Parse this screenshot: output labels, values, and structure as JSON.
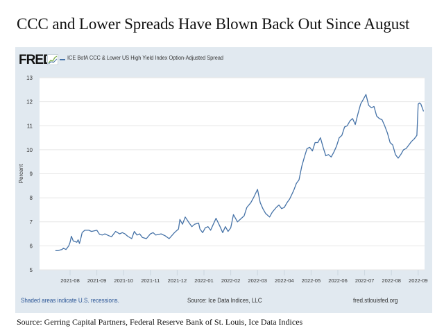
{
  "headline": "CCC and Lower Spreads Have Blown Back Out Since August",
  "fred": {
    "logo_text": "FRED",
    "logo_icon": "chart-line-icon",
    "footer_left": "Shaded areas indicate U.S. recessions.",
    "footer_mid": "Source: Ice Data Indices, LLC",
    "footer_right": "fred.stlouisfed.org"
  },
  "caption": "Source: Gerring Capital Partners, Federal Reserve Bank of St. Louis, Ice Data Indices",
  "chart_data": {
    "type": "line",
    "title": "ICE BofA CCC & Lower US High Yield Index Option-Adjusted Spread",
    "xlabel": "",
    "ylabel": "Percent",
    "ylim": [
      5,
      13
    ],
    "yticks": [
      5,
      6,
      7,
      8,
      9,
      10,
      11,
      12,
      13
    ],
    "xticks": [
      "2021-08",
      "2021-09",
      "2021-10",
      "2021-11",
      "2021-12",
      "2022-01",
      "2022-02",
      "2022-03",
      "2022-04",
      "2022-05",
      "2022-06",
      "2022-07",
      "2022-08",
      "2022-09"
    ],
    "grid": true,
    "legend": "top-left",
    "line_color": "#4572a7",
    "series": [
      {
        "name": "ICE BofA CCC & Lower US High Yield Index Option-Adjusted Spread",
        "x_months": [
          -0.55,
          -0.45,
          -0.4,
          -0.3,
          -0.25,
          -0.15,
          -0.05,
          0.0,
          0.05,
          0.12,
          0.18,
          0.25,
          0.3,
          0.35,
          0.4,
          0.45,
          0.55,
          0.7,
          0.8,
          1.0,
          1.1,
          1.2,
          1.3,
          1.45,
          1.55,
          1.7,
          1.85,
          1.95,
          2.05,
          2.15,
          2.3,
          2.4,
          2.5,
          2.6,
          2.7,
          2.85,
          3.0,
          3.1,
          3.2,
          3.4,
          3.55,
          3.7,
          3.9,
          4.05,
          4.1,
          4.2,
          4.3,
          4.45,
          4.55,
          4.65,
          4.8,
          4.85,
          4.95,
          5.05,
          5.15,
          5.25,
          5.35,
          5.45,
          5.6,
          5.7,
          5.8,
          5.9,
          6.0,
          6.1,
          6.25,
          6.4,
          6.5,
          6.6,
          6.75,
          6.85,
          7.0,
          7.1,
          7.2,
          7.3,
          7.45,
          7.55,
          7.7,
          7.8,
          7.9,
          8.0,
          8.1,
          8.2,
          8.35,
          8.45,
          8.55,
          8.65,
          8.75,
          8.85,
          8.95,
          9.05,
          9.15,
          9.25,
          9.35,
          9.45,
          9.55,
          9.65,
          9.75,
          9.85,
          9.95,
          10.05,
          10.15,
          10.25,
          10.35,
          10.45,
          10.55,
          10.65,
          10.75,
          10.85,
          10.95,
          11.05,
          11.15,
          11.25,
          11.35,
          11.45,
          11.55,
          11.65,
          11.75,
          11.85,
          11.95,
          12.05,
          12.15,
          12.25,
          12.35,
          12.45,
          12.55,
          12.65,
          12.75,
          12.85,
          12.95,
          13.0,
          13.05,
          13.1,
          13.15,
          13.2
        ],
        "values": [
          5.8,
          5.8,
          5.82,
          5.85,
          5.9,
          5.85,
          6.0,
          6.15,
          6.4,
          6.2,
          6.18,
          6.15,
          6.25,
          6.1,
          6.3,
          6.55,
          6.65,
          6.65,
          6.6,
          6.65,
          6.48,
          6.45,
          6.5,
          6.42,
          6.38,
          6.6,
          6.5,
          6.55,
          6.5,
          6.4,
          6.3,
          6.6,
          6.45,
          6.5,
          6.35,
          6.3,
          6.5,
          6.55,
          6.45,
          6.5,
          6.42,
          6.3,
          6.55,
          6.7,
          7.1,
          6.9,
          7.2,
          6.95,
          6.8,
          6.9,
          6.95,
          6.7,
          6.55,
          6.75,
          6.8,
          6.65,
          6.9,
          7.15,
          6.8,
          6.55,
          6.8,
          6.6,
          6.75,
          7.3,
          7.0,
          7.15,
          7.25,
          7.6,
          7.8,
          8.0,
          8.35,
          7.8,
          7.55,
          7.35,
          7.2,
          7.4,
          7.6,
          7.7,
          7.55,
          7.6,
          7.8,
          7.95,
          8.3,
          8.6,
          8.75,
          9.3,
          9.7,
          10.05,
          10.1,
          9.95,
          10.3,
          10.3,
          10.5,
          10.1,
          9.75,
          9.8,
          9.7,
          9.9,
          10.15,
          10.5,
          10.6,
          10.95,
          11.0,
          11.2,
          11.3,
          11.05,
          11.5,
          11.9,
          12.1,
          12.3,
          11.85,
          11.75,
          11.8,
          11.4,
          11.3,
          11.25,
          11.0,
          10.7,
          10.3,
          10.2,
          9.8,
          9.65,
          9.8,
          10.0,
          10.05,
          10.2,
          10.35,
          10.45,
          10.6,
          11.9,
          11.95,
          11.9,
          11.75,
          11.6
        ]
      }
    ]
  }
}
